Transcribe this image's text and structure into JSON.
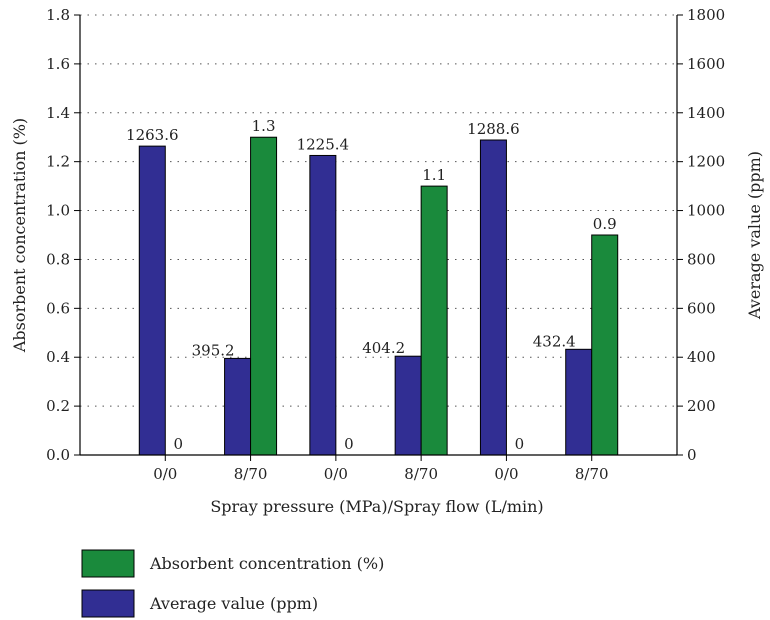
{
  "chart_data": {
    "type": "bar",
    "categories": [
      "0/0",
      "8/70",
      "0/0",
      "8/70",
      "0/0",
      "8/70"
    ],
    "xlabel": "Spray pressure (MPa)/Spray flow (L/min)",
    "ylabel_left": "Absorbent concentration (%)",
    "ylabel_right": "Average value (ppm)",
    "ylim_left": [
      0,
      1.8
    ],
    "ylim_right": [
      0,
      1800
    ],
    "yticks_left": [
      "0.0",
      "0.2",
      "0.4",
      "0.6",
      "0.8",
      "1.0",
      "1.2",
      "1.4",
      "1.6",
      "1.8"
    ],
    "yticks_right": [
      "0",
      "200",
      "400",
      "600",
      "800",
      "1000",
      "1200",
      "1400",
      "1600",
      "1800"
    ],
    "grid": "dotted horizontal",
    "legend_position": "bottom",
    "series": [
      {
        "name": "Average value (ppm)",
        "axis": "right",
        "color": "#312e93",
        "values": [
          1263.6,
          395.2,
          1225.4,
          404.2,
          1288.6,
          432.4
        ],
        "labels": [
          "1263.6",
          "395.2",
          "1225.4",
          "404.2",
          "1288.6",
          "432.4"
        ]
      },
      {
        "name": "Absorbent concentration (%)",
        "axis": "left",
        "color": "#1a8a3c",
        "values": [
          0,
          1.3,
          0,
          1.1,
          0,
          0.9
        ],
        "labels": [
          "0",
          "1.3",
          "0",
          "1.1",
          "0",
          "0.9"
        ]
      }
    ],
    "legend": [
      {
        "label": "Absorbent concentration (%)",
        "color": "#1a8a3c"
      },
      {
        "label": "Average value (ppm)",
        "color": "#312e93"
      }
    ]
  }
}
